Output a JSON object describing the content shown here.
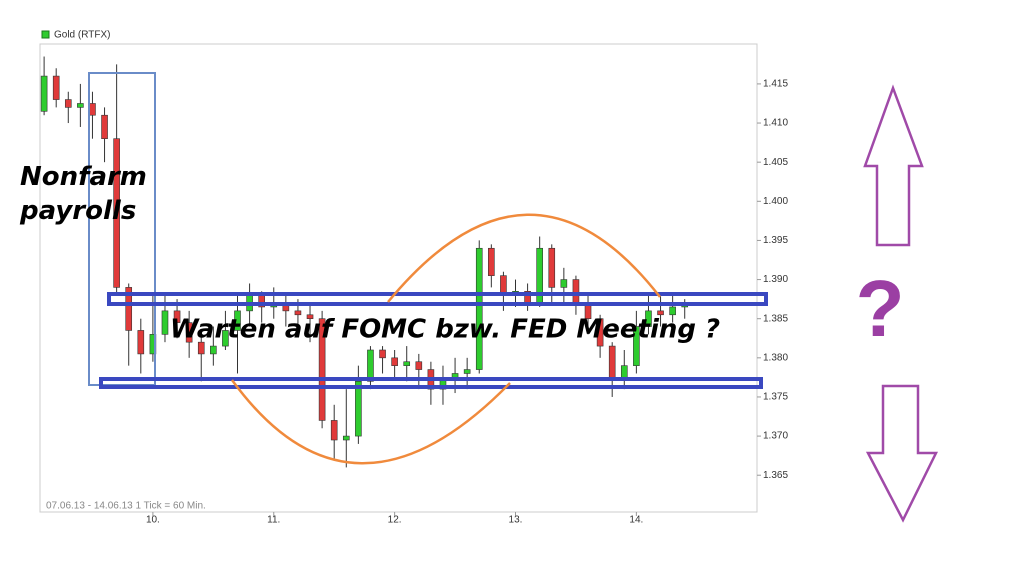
{
  "chart_data": {
    "type": "candlestick",
    "legend": "Gold (RTFX)",
    "subtitle": "07.06.13 - 14.06.13  1 Tick = 60 Min.",
    "annotations": [
      "Nonfarm payrolls",
      "Warten auf FOMC bzw. FED Meeting ?",
      "?"
    ],
    "up_color": "#2ecc2e",
    "down_color": "#e03a3a",
    "x": [
      9.1,
      9.2,
      9.3,
      9.4,
      9.5,
      9.6,
      9.7,
      9.8,
      9.9,
      10.0,
      10.1,
      10.2,
      10.3,
      10.4,
      10.5,
      10.6,
      10.7,
      10.8,
      10.9,
      11.0,
      11.1,
      11.2,
      11.3,
      11.4,
      11.5,
      11.6,
      11.7,
      11.8,
      11.9,
      12.0,
      12.1,
      12.2,
      12.3,
      12.4,
      12.5,
      12.6,
      12.7,
      12.8,
      12.9,
      13.0,
      13.1,
      13.2,
      13.3,
      13.4,
      13.5,
      13.6,
      13.7,
      13.8,
      13.9,
      14.0,
      14.1,
      14.2,
      14.3,
      14.4
    ],
    "open": [
      1.4115,
      1.416,
      1.413,
      1.412,
      1.4125,
      1.411,
      1.408,
      1.389,
      1.3835,
      1.3805,
      1.383,
      1.386,
      1.3845,
      1.382,
      1.3805,
      1.3815,
      1.3835,
      1.386,
      1.388,
      1.3865,
      1.387,
      1.386,
      1.3855,
      1.385,
      1.372,
      1.3695,
      1.37,
      1.377,
      1.381,
      1.38,
      1.379,
      1.3795,
      1.3785,
      1.376,
      1.3775,
      1.378,
      1.3785,
      1.394,
      1.3905,
      1.388,
      1.3885,
      1.387,
      1.394,
      1.389,
      1.39,
      1.387,
      1.385,
      1.3815,
      1.3775,
      1.379,
      1.384,
      1.386,
      1.3855,
      1.3865
    ],
    "high": [
      1.4185,
      1.417,
      1.414,
      1.415,
      1.414,
      1.412,
      1.4175,
      1.3895,
      1.385,
      1.388,
      1.388,
      1.3875,
      1.386,
      1.3835,
      1.384,
      1.386,
      1.388,
      1.3895,
      1.3885,
      1.389,
      1.388,
      1.3875,
      1.387,
      1.386,
      1.374,
      1.376,
      1.379,
      1.3815,
      1.3815,
      1.381,
      1.3815,
      1.3805,
      1.3795,
      1.379,
      1.38,
      1.38,
      1.395,
      1.3945,
      1.391,
      1.39,
      1.3895,
      1.3955,
      1.3945,
      1.3915,
      1.3905,
      1.388,
      1.3855,
      1.382,
      1.381,
      1.386,
      1.388,
      1.388,
      1.388,
      1.3875
    ],
    "low": [
      1.411,
      1.412,
      1.41,
      1.4095,
      1.408,
      1.405,
      1.388,
      1.379,
      1.378,
      1.3795,
      1.382,
      1.3825,
      1.38,
      1.377,
      1.379,
      1.381,
      1.378,
      1.384,
      1.3845,
      1.385,
      1.384,
      1.383,
      1.382,
      1.371,
      1.367,
      1.366,
      1.369,
      1.376,
      1.378,
      1.3775,
      1.377,
      1.376,
      1.374,
      1.374,
      1.3755,
      1.376,
      1.378,
      1.389,
      1.386,
      1.3865,
      1.386,
      1.3865,
      1.387,
      1.387,
      1.3855,
      1.383,
      1.38,
      1.375,
      1.376,
      1.378,
      1.383,
      1.384,
      1.3845,
      1.385
    ],
    "close": [
      1.416,
      1.413,
      1.412,
      1.4125,
      1.411,
      1.408,
      1.389,
      1.3835,
      1.3805,
      1.383,
      1.386,
      1.3845,
      1.382,
      1.3805,
      1.3815,
      1.3835,
      1.386,
      1.388,
      1.3865,
      1.387,
      1.386,
      1.3855,
      1.385,
      1.372,
      1.3695,
      1.37,
      1.377,
      1.381,
      1.38,
      1.379,
      1.3795,
      1.3785,
      1.376,
      1.3775,
      1.378,
      1.3785,
      1.394,
      1.3905,
      1.388,
      1.3885,
      1.387,
      1.394,
      1.389,
      1.39,
      1.387,
      1.385,
      1.3815,
      1.3775,
      1.379,
      1.384,
      1.386,
      1.3855,
      1.3865,
      1.387
    ],
    "xlim": [
      9.066,
      14.998
    ],
    "xticks": [
      {
        "value": 10,
        "label": "10."
      },
      {
        "value": 11,
        "label": "11."
      },
      {
        "value": 12,
        "label": "12."
      },
      {
        "value": 13,
        "label": "13."
      },
      {
        "value": 14,
        "label": "14."
      }
    ],
    "ylim": [
      1.3603,
      1.4201
    ],
    "yticks": [
      1.365,
      {
        "value": 1.37,
        "label": "1.370"
      },
      1.375,
      {
        "value": 1.38,
        "label": "1.380"
      },
      1.385,
      {
        "value": 1.39,
        "label": "1.390"
      },
      1.395,
      {
        "value": 1.4,
        "label": "1.400"
      },
      1.405,
      {
        "value": 1.41,
        "label": "1.410"
      },
      1.415
    ]
  }
}
